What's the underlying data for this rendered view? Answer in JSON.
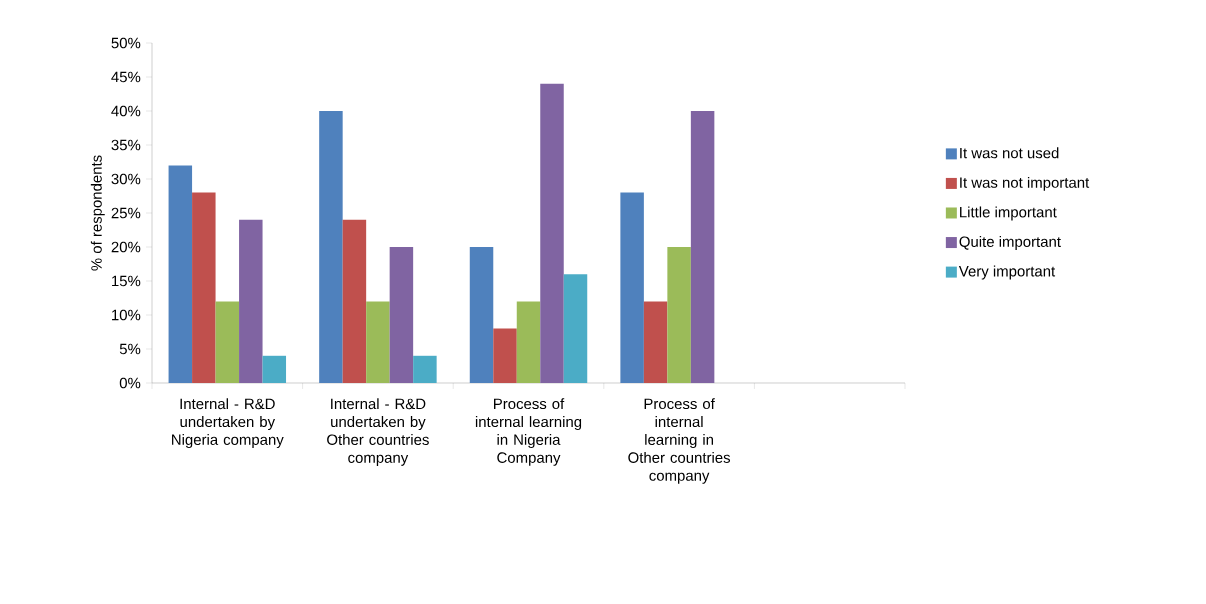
{
  "chart_data": {
    "type": "bar",
    "ylabel": "% of respondents",
    "categories": [
      "Internal - R&D undertaken by Nigeria company",
      "Internal - R&D undertaken by Other countries company",
      "Process of internal learning in Nigeria Company",
      "Process of internal learning in Other countries company",
      null
    ],
    "series": [
      {
        "name": "It was not used",
        "color": "#4f81bd",
        "values": [
          32,
          40,
          20,
          28,
          null
        ]
      },
      {
        "name": "It was not important",
        "color": "#c0504d",
        "values": [
          28,
          24,
          8,
          12,
          null
        ]
      },
      {
        "name": "Little important",
        "color": "#9bbb59",
        "values": [
          12,
          12,
          12,
          20,
          null
        ]
      },
      {
        "name": "Quite important",
        "color": "#8064a2",
        "values": [
          24,
          20,
          44,
          40,
          null
        ]
      },
      {
        "name": "Very important",
        "color": "#4bacc6",
        "values": [
          4,
          4,
          16,
          null,
          null
        ]
      }
    ],
    "ylim": [
      0,
      50
    ],
    "yticks": [
      {
        "value": 0,
        "label": "0%"
      },
      {
        "value": 5,
        "label": "5%"
      },
      {
        "value": 10,
        "label": "10%"
      },
      {
        "value": 15,
        "label": "15%"
      },
      {
        "value": 20,
        "label": "20%"
      },
      {
        "value": 25,
        "label": "25%"
      },
      {
        "value": 30,
        "label": "30%"
      },
      {
        "value": 35,
        "label": "35%"
      },
      {
        "value": 40,
        "label": "40%"
      },
      {
        "value": 45,
        "label": "45%"
      },
      {
        "value": 50,
        "label": "50%"
      }
    ],
    "legend": "right"
  }
}
